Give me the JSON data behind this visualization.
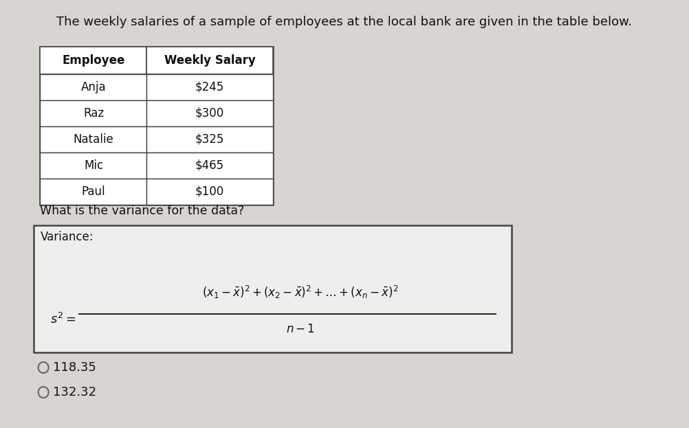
{
  "title": "The weekly salaries of a sample of employees at the local bank are given in the table below.",
  "table_headers": [
    "Employee",
    "Weekly Salary"
  ],
  "table_rows": [
    [
      "Anja",
      "$245"
    ],
    [
      "Raz",
      "$300"
    ],
    [
      "Natalie",
      "$325"
    ],
    [
      "Mic",
      "$465"
    ],
    [
      "Paul",
      "$100"
    ]
  ],
  "question": "What is the variance for the data?",
  "variance_label": "Variance:",
  "choices": [
    "118.35",
    "132.32"
  ],
  "bg_color": "#d8d4d0",
  "table_bg": "#ffffff",
  "box_bg": "#f0eeec",
  "text_color": "#111111",
  "border_color": "#444444"
}
